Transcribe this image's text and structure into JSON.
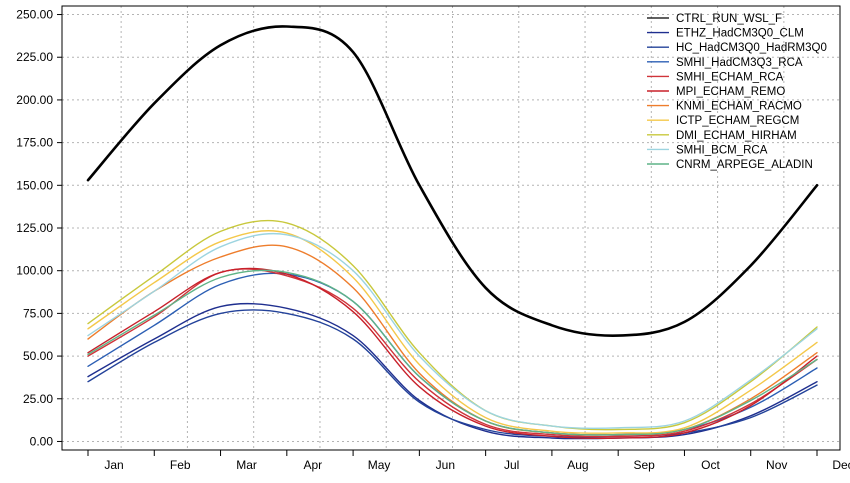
{
  "chart_data": {
    "type": "line",
    "title": "",
    "xlabel": "",
    "ylabel": "",
    "categories": [
      "Jan",
      "Feb",
      "Mar",
      "Apr",
      "May",
      "Jun",
      "Jul",
      "Aug",
      "Sep",
      "Oct",
      "Nov",
      "Dec"
    ],
    "y_tick_labels": [
      "0.00",
      "25.00",
      "50.00",
      "75.00",
      "100.00",
      "125.00",
      "150.00",
      "175.00",
      "200.00",
      "225.00",
      "250.00"
    ],
    "ylim": [
      -5,
      255
    ],
    "grid": true,
    "legend_position": "top-right",
    "series": [
      {
        "name": "CTRL_RUN_WSL_F",
        "color": "#000000",
        "values": [
          153,
          198,
          232,
          243,
          228,
          150,
          90,
          68,
          62,
          70,
          103,
          150
        ]
      },
      {
        "name": "ETHZ_HadCM3Q0_CLM",
        "color": "#1f2f8f",
        "values": [
          38,
          60,
          79,
          78,
          62,
          24,
          6,
          2,
          2,
          4,
          15,
          35
        ]
      },
      {
        "name": "HC_HadCM3Q0_HadRM3Q0",
        "color": "#23429a",
        "values": [
          35,
          58,
          75,
          75,
          60,
          23,
          7,
          3,
          3,
          5,
          14,
          33
        ]
      },
      {
        "name": "SMHI_HadCM3Q3_RCA",
        "color": "#2c5fb4",
        "values": [
          44,
          68,
          92,
          98,
          82,
          38,
          12,
          5,
          4,
          7,
          20,
          43
        ]
      },
      {
        "name": "SMHI_ECHAM_RCA",
        "color": "#d0343a",
        "values": [
          50,
          73,
          99,
          97,
          78,
          35,
          10,
          4,
          3,
          6,
          22,
          48
        ]
      },
      {
        "name": "MPI_ECHAM_REMO",
        "color": "#c8202a",
        "values": [
          52,
          76,
          99,
          98,
          76,
          32,
          9,
          3,
          2,
          5,
          21,
          50
        ]
      },
      {
        "name": "KNMI_ECHAM_RACMO",
        "color": "#ee7d2c",
        "values": [
          60,
          88,
          108,
          114,
          90,
          40,
          12,
          5,
          4,
          7,
          25,
          52
        ]
      },
      {
        "name": "ICTP_ECHAM_REGCM",
        "color": "#f4c84a",
        "values": [
          66,
          93,
          117,
          122,
          96,
          45,
          14,
          6,
          5,
          8,
          30,
          58
        ]
      },
      {
        "name": "DMI_ECHAM_HIRHAM",
        "color": "#c8c83c",
        "values": [
          69,
          97,
          123,
          128,
          103,
          52,
          18,
          9,
          7,
          11,
          35,
          67
        ]
      },
      {
        "name": "SMHI_BCM_RCA",
        "color": "#9cd4e0",
        "values": [
          62,
          88,
          114,
          121,
          100,
          50,
          18,
          9,
          8,
          12,
          36,
          66
        ]
      },
      {
        "name": "CNRM_ARPEGE_ALADIN",
        "color": "#5fb487",
        "values": [
          51,
          74,
          96,
          99,
          82,
          38,
          12,
          5,
          4,
          7,
          24,
          48
        ]
      }
    ]
  }
}
